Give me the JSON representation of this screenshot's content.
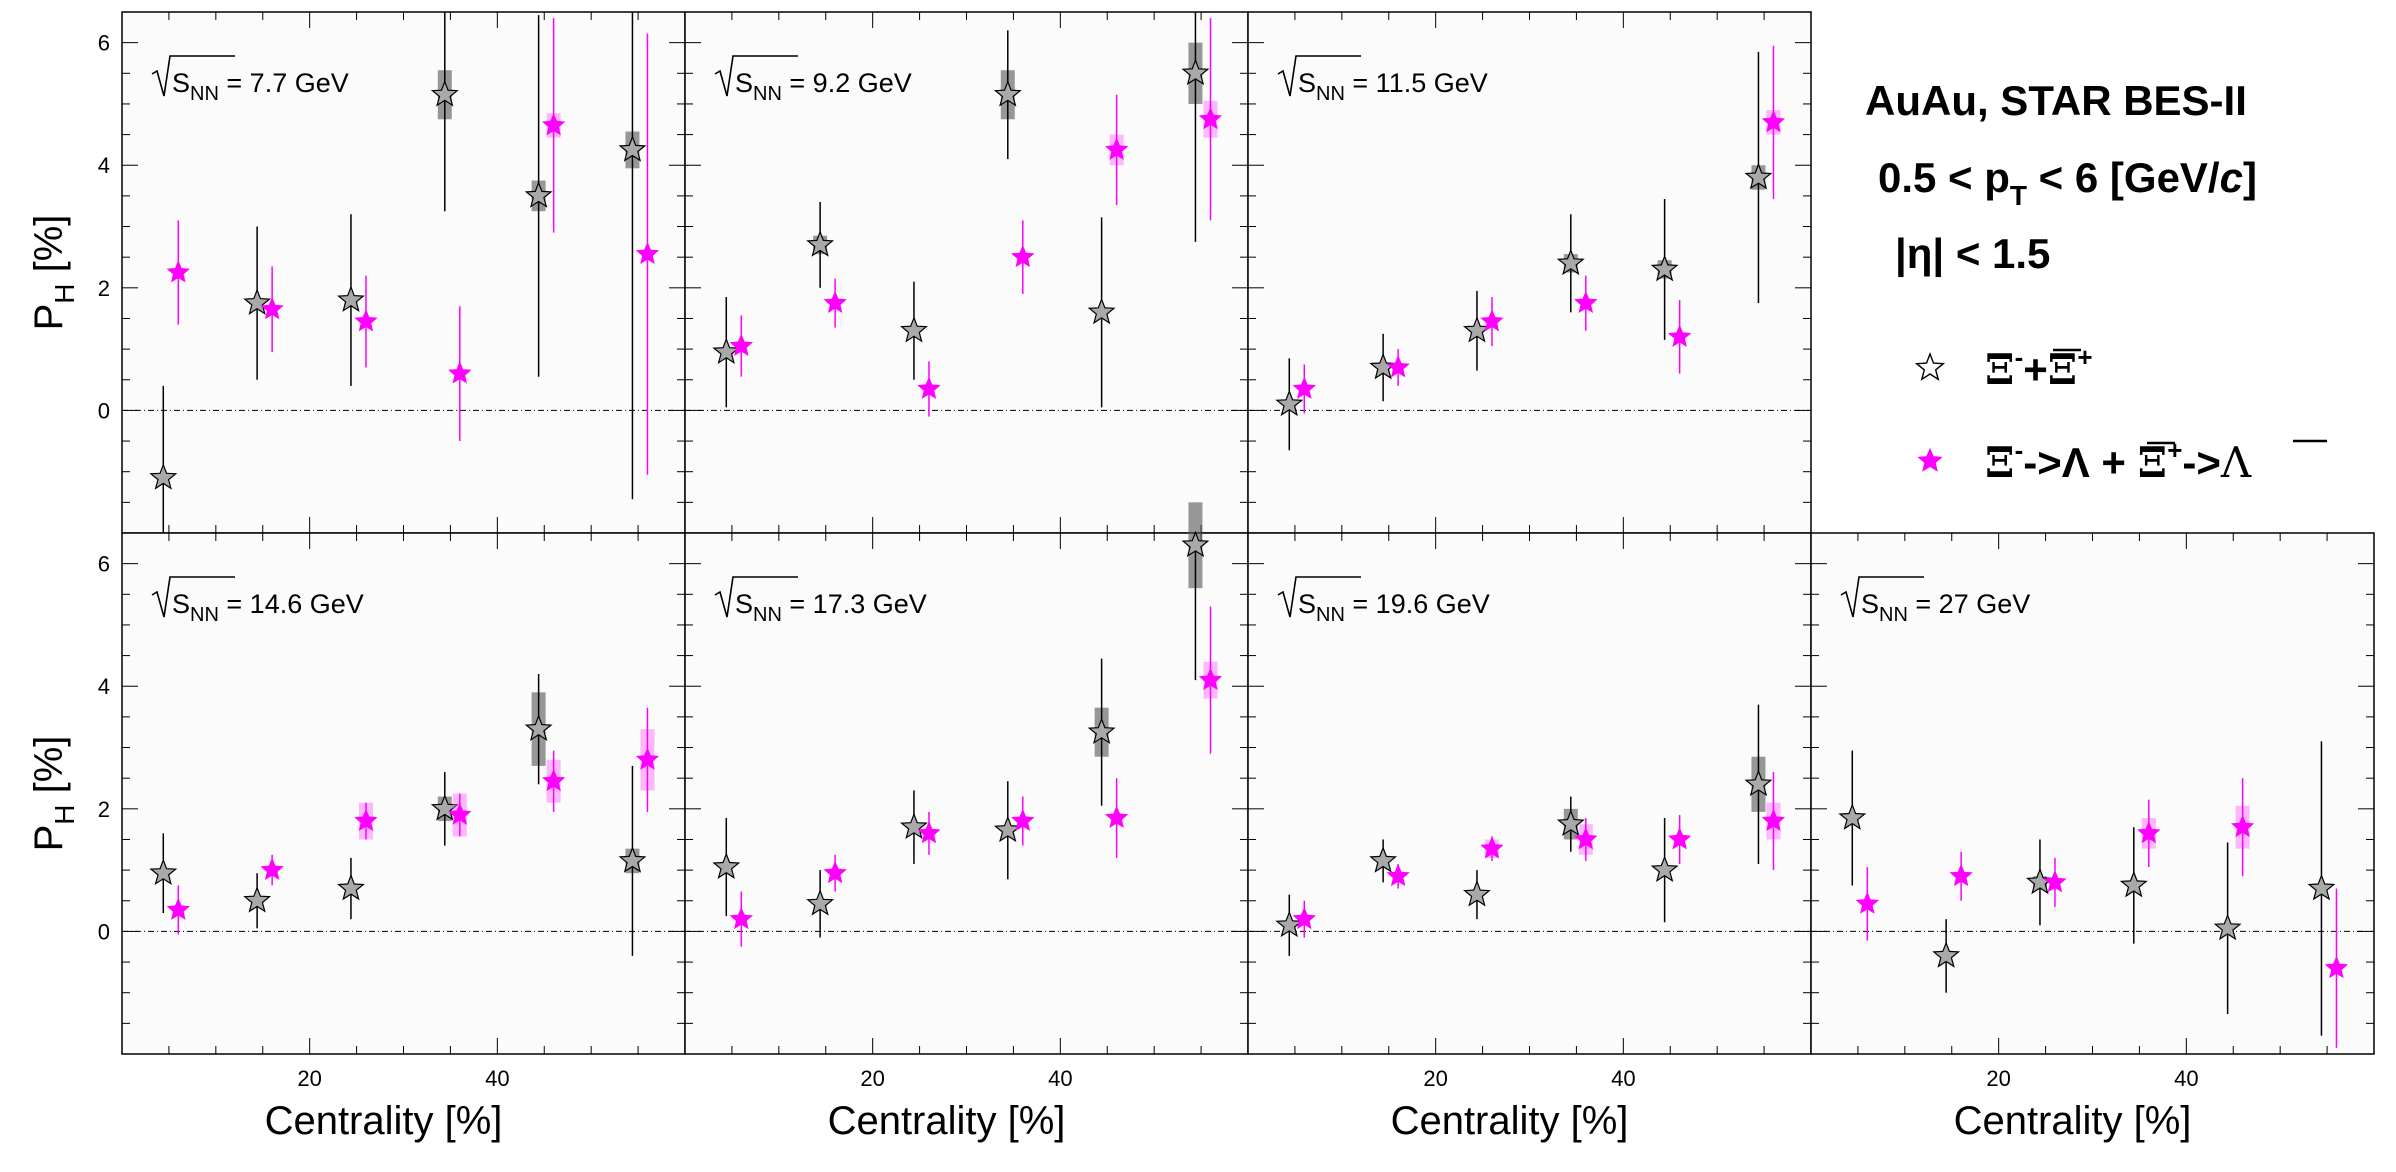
{
  "legend": {
    "line1": "AuAu, STAR BES-II",
    "line2_prefix": "0.5 < p",
    "line2_sub": "T",
    "line2_mid": " < 6 [GeV/",
    "line2_italic": "c",
    "line2_suffix": "]",
    "line3": "|η| < 1.5",
    "entries": [
      {
        "label_parts": [
          "Ξ",
          "-",
          "+",
          "Ξ",
          "+"
        ],
        "marker": "open-star",
        "color": "#000000"
      },
      {
        "label_parts": [
          "Ξ",
          "-",
          "->Λ + ",
          "Ξ",
          "+",
          "->",
          "Λ"
        ],
        "marker": "filled-star",
        "color": "#ff00ff"
      }
    ]
  },
  "chart_data": [
    {
      "type": "scatter",
      "energy_prefix": "S",
      "energy_sub": "NN",
      "energy": "7.7 GeV",
      "xlabel": "",
      "ylabel": "P_H [%]",
      "xlim": [
        0,
        60
      ],
      "ylim": [
        -2,
        6.5
      ],
      "series": [
        {
          "x": [
            5,
            15,
            25,
            35,
            45,
            55
          ],
          "y": [
            -1.1,
            1.75,
            1.8,
            5.15,
            3.5,
            4.25
          ],
          "err": [
            1.5,
            1.25,
            1.4,
            1.9,
            2.95,
            5.7
          ],
          "sys": [
            0,
            0,
            0,
            0.4,
            0.25,
            0.3
          ],
          "fill": "#a9a9a9"
        },
        {
          "x": [
            5,
            15,
            25,
            35,
            45,
            55
          ],
          "y": [
            2.25,
            1.65,
            1.45,
            0.6,
            4.65,
            2.55
          ],
          "err": [
            0.85,
            0.7,
            0.75,
            1.1,
            1.75,
            3.6
          ],
          "sys": [
            0,
            0,
            0,
            0,
            0.2,
            0
          ],
          "fill": "#ff00ff"
        }
      ]
    },
    {
      "type": "scatter",
      "energy_prefix": "S",
      "energy_sub": "NN",
      "energy": "9.2 GeV",
      "xlabel": "",
      "ylabel": "",
      "xlim": [
        0,
        60
      ],
      "ylim": [
        -2,
        6.5
      ],
      "series": [
        {
          "x": [
            5,
            15,
            25,
            35,
            45,
            55
          ],
          "y": [
            0.95,
            2.7,
            1.3,
            5.15,
            1.6,
            5.5
          ],
          "err": [
            0.9,
            0.7,
            0.8,
            1.05,
            1.55,
            2.75
          ],
          "sys": [
            0,
            0.15,
            0,
            0.4,
            0,
            0.5
          ],
          "fill": "#a9a9a9"
        },
        {
          "x": [
            5,
            15,
            25,
            35,
            45,
            55
          ],
          "y": [
            1.05,
            1.75,
            0.35,
            2.5,
            4.25,
            4.75
          ],
          "err": [
            0.5,
            0.4,
            0.45,
            0.6,
            0.9,
            1.65
          ],
          "sys": [
            0,
            0,
            0,
            0,
            0.25,
            0.3
          ],
          "fill": "#ff00ff"
        }
      ]
    },
    {
      "type": "scatter",
      "energy_prefix": "S",
      "energy_sub": "NN",
      "energy": "11.5 GeV",
      "xlabel": "",
      "ylabel": "",
      "xlim": [
        0,
        60
      ],
      "ylim": [
        -2,
        6.5
      ],
      "series": [
        {
          "x": [
            5,
            15,
            25,
            35,
            45,
            55
          ],
          "y": [
            0.1,
            0.7,
            1.3,
            2.4,
            2.3,
            3.8
          ],
          "err": [
            0.75,
            0.55,
            0.65,
            0.8,
            1.15,
            2.05
          ],
          "sys": [
            0,
            0,
            0,
            0.15,
            0.15,
            0.2
          ],
          "fill": "#a9a9a9"
        },
        {
          "x": [
            5,
            15,
            25,
            35,
            45,
            55
          ],
          "y": [
            0.35,
            0.7,
            1.45,
            1.75,
            1.2,
            4.7
          ],
          "err": [
            0.4,
            0.3,
            0.4,
            0.45,
            0.6,
            1.25
          ],
          "sys": [
            0,
            0,
            0,
            0,
            0,
            0.2
          ],
          "fill": "#ff00ff"
        }
      ]
    },
    {
      "type": "scatter",
      "energy_prefix": "S",
      "energy_sub": "NN",
      "energy": "14.6 GeV",
      "xlabel": "Centrality [%]",
      "ylabel": "P_H [%]",
      "xlim": [
        0,
        60
      ],
      "ylim": [
        -2,
        6.5
      ],
      "series": [
        {
          "x": [
            5,
            15,
            25,
            35,
            45,
            55
          ],
          "y": [
            0.95,
            0.5,
            0.7,
            2.0,
            3.3,
            1.15
          ],
          "err": [
            0.65,
            0.45,
            0.5,
            0.6,
            0.9,
            1.55
          ],
          "sys": [
            0,
            0,
            0,
            0.2,
            0.6,
            0.2
          ],
          "fill": "#a9a9a9"
        },
        {
          "x": [
            5,
            15,
            25,
            35,
            45,
            55
          ],
          "y": [
            0.35,
            1.0,
            1.8,
            1.9,
            2.45,
            2.8
          ],
          "err": [
            0.4,
            0.25,
            0.3,
            0.35,
            0.5,
            0.85
          ],
          "sys": [
            0,
            0,
            0.3,
            0.35,
            0.35,
            0.5
          ],
          "fill": "#ff00ff"
        }
      ]
    },
    {
      "type": "scatter",
      "energy_prefix": "S",
      "energy_sub": "NN",
      "energy": "17.3 GeV",
      "xlabel": "Centrality [%]",
      "ylabel": "",
      "xlim": [
        0,
        60
      ],
      "ylim": [
        -2,
        6.5
      ],
      "series": [
        {
          "x": [
            5,
            15,
            25,
            35,
            45,
            55
          ],
          "y": [
            1.05,
            0.45,
            1.7,
            1.65,
            3.25,
            6.3
          ],
          "err": [
            0.8,
            0.55,
            0.6,
            0.8,
            1.2,
            2.2
          ],
          "sys": [
            0,
            0,
            0,
            0,
            0.4,
            0.7
          ],
          "fill": "#a9a9a9"
        },
        {
          "x": [
            5,
            15,
            25,
            35,
            45,
            55
          ],
          "y": [
            0.2,
            0.95,
            1.6,
            1.8,
            1.85,
            4.1
          ],
          "err": [
            0.45,
            0.3,
            0.35,
            0.4,
            0.65,
            1.2
          ],
          "sys": [
            0,
            0,
            0,
            0,
            0,
            0.3
          ],
          "fill": "#ff00ff"
        }
      ]
    },
    {
      "type": "scatter",
      "energy_prefix": "S",
      "energy_sub": "NN",
      "energy": "19.6 GeV",
      "xlabel": "Centrality [%]",
      "ylabel": "",
      "xlim": [
        0,
        60
      ],
      "ylim": [
        -2,
        6.5
      ],
      "series": [
        {
          "x": [
            5,
            15,
            25,
            35,
            45,
            55
          ],
          "y": [
            0.1,
            1.15,
            0.6,
            1.75,
            1.0,
            2.4
          ],
          "err": [
            0.5,
            0.35,
            0.4,
            0.45,
            0.85,
            1.3
          ],
          "sys": [
            0,
            0,
            0,
            0.25,
            0,
            0.45
          ],
          "fill": "#a9a9a9"
        },
        {
          "x": [
            5,
            15,
            25,
            35,
            45,
            55
          ],
          "y": [
            0.2,
            0.9,
            1.35,
            1.5,
            1.5,
            1.8
          ],
          "err": [
            0.3,
            0.2,
            0.2,
            0.35,
            0.4,
            0.8
          ],
          "sys": [
            0,
            0,
            0.15,
            0.25,
            0,
            0.3
          ],
          "fill": "#ff00ff"
        }
      ]
    },
    {
      "type": "scatter",
      "energy_prefix": "S",
      "energy_sub": "NN",
      "energy": "27 GeV",
      "xlabel": "Centrality [%]",
      "ylabel": "",
      "xlim": [
        0,
        60
      ],
      "ylim": [
        -2,
        6.5
      ],
      "series": [
        {
          "x": [
            5,
            15,
            25,
            35,
            45,
            55
          ],
          "y": [
            1.85,
            -0.4,
            0.8,
            0.75,
            0.05,
            0.7
          ],
          "err": [
            1.1,
            0.6,
            0.7,
            0.95,
            1.4,
            2.4
          ],
          "sys": [
            0,
            0,
            0.1,
            0,
            0,
            0
          ],
          "fill": "#a9a9a9"
        },
        {
          "x": [
            5,
            15,
            25,
            35,
            45,
            55
          ],
          "y": [
            0.45,
            0.9,
            0.8,
            1.6,
            1.7,
            -0.6
          ],
          "err": [
            0.6,
            0.4,
            0.4,
            0.55,
            0.8,
            1.3
          ],
          "sys": [
            0,
            0,
            0,
            0.25,
            0.35,
            0
          ],
          "fill": "#ff00ff"
        }
      ]
    }
  ]
}
